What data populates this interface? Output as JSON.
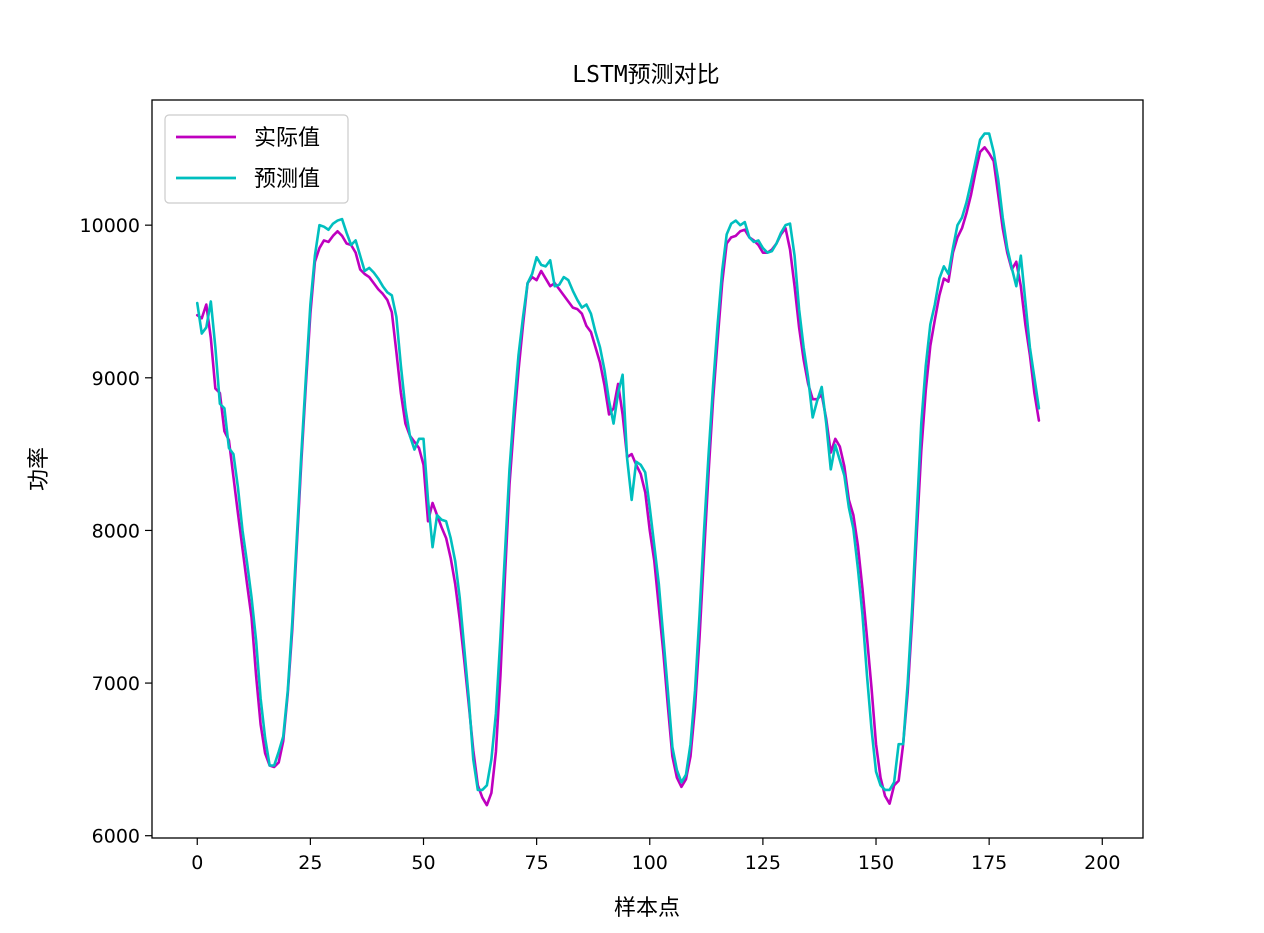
{
  "chart_data": {
    "type": "line",
    "title": "LSTM预测对比",
    "xlabel": "样本点",
    "ylabel": "功率",
    "xlim": [
      -10,
      209
    ],
    "ylim": [
      5985,
      10820
    ],
    "xticks": [
      0,
      25,
      50,
      75,
      100,
      125,
      150,
      175,
      200
    ],
    "yticks": [
      6000,
      7000,
      8000,
      9000,
      10000
    ],
    "grid": false,
    "legend_position": "upper left",
    "series": [
      {
        "name": "实际值",
        "color": "#bf00bf",
        "x_start": 0,
        "values": [
          9410,
          9390,
          9480,
          9260,
          8930,
          8900,
          8650,
          8590,
          8350,
          8110,
          7880,
          7650,
          7430,
          7050,
          6730,
          6540,
          6460,
          6450,
          6480,
          6620,
          6930,
          7350,
          7900,
          8450,
          8950,
          9420,
          9760,
          9850,
          9900,
          9890,
          9930,
          9960,
          9930,
          9880,
          9870,
          9820,
          9710,
          9680,
          9660,
          9620,
          9580,
          9550,
          9510,
          9430,
          9170,
          8900,
          8700,
          8620,
          8580,
          8540,
          8430,
          8060,
          8180,
          8100,
          8020,
          7950,
          7820,
          7650,
          7420,
          7150,
          6860,
          6560,
          6330,
          6250,
          6200,
          6280,
          6550,
          7050,
          7700,
          8300,
          8700,
          9050,
          9350,
          9620,
          9660,
          9640,
          9700,
          9650,
          9600,
          9620,
          9580,
          9540,
          9500,
          9460,
          9450,
          9420,
          9340,
          9300,
          9200,
          9100,
          8950,
          8760,
          8800,
          8960,
          8760,
          8480,
          8500,
          8430,
          8370,
          8250,
          8000,
          7800,
          7500,
          7200,
          6850,
          6520,
          6380,
          6320,
          6370,
          6520,
          6840,
          7300,
          7850,
          8380,
          8860,
          9250,
          9620,
          9880,
          9920,
          9930,
          9960,
          9970,
          9920,
          9900,
          9870,
          9820,
          9820,
          9840,
          9880,
          9940,
          9980,
          9840,
          9600,
          9330,
          9120,
          8960,
          8860,
          8860,
          8890,
          8730,
          8510,
          8600,
          8550,
          8420,
          8200,
          8100,
          7900,
          7620,
          7300,
          6970,
          6600,
          6380,
          6260,
          6210,
          6330,
          6360,
          6600,
          6940,
          7420,
          7980,
          8520,
          8920,
          9210,
          9380,
          9540,
          9650,
          9630,
          9820,
          9920,
          9980,
          10080,
          10200,
          10350,
          10480,
          10510,
          10470,
          10420,
          10200,
          9980,
          9820,
          9710,
          9760,
          9600,
          9350,
          9150,
          8900,
          8720
        ]
      },
      {
        "name": "预测值",
        "color": "#00bfbf",
        "x_start": 0,
        "values": [
          9490,
          9290,
          9330,
          9500,
          9200,
          8830,
          8800,
          8540,
          8500,
          8280,
          8000,
          7790,
          7560,
          7280,
          6900,
          6640,
          6460,
          6460,
          6550,
          6650,
          6950,
          7400,
          7950,
          8500,
          9000,
          9480,
          9800,
          10000,
          9990,
          9970,
          10010,
          10030,
          10040,
          9950,
          9870,
          9900,
          9800,
          9700,
          9720,
          9690,
          9650,
          9600,
          9560,
          9540,
          9400,
          9080,
          8800,
          8620,
          8530,
          8600,
          8600,
          8200,
          7890,
          8100,
          8070,
          8060,
          7950,
          7800,
          7560,
          7230,
          6900,
          6500,
          6300,
          6300,
          6330,
          6500,
          6800,
          7300,
          7850,
          8400,
          8800,
          9150,
          9400,
          9620,
          9680,
          9790,
          9740,
          9730,
          9770,
          9600,
          9610,
          9660,
          9640,
          9570,
          9510,
          9460,
          9480,
          9420,
          9300,
          9200,
          9050,
          8850,
          8700,
          8900,
          9020,
          8470,
          8200,
          8450,
          8430,
          8380,
          8150,
          7900,
          7650,
          7300,
          6950,
          6580,
          6430,
          6350,
          6400,
          6600,
          6950,
          7450,
          8000,
          8500,
          8950,
          9350,
          9700,
          9940,
          10010,
          10030,
          10000,
          10020,
          9920,
          9890,
          9900,
          9850,
          9820,
          9830,
          9880,
          9950,
          10000,
          10010,
          9800,
          9450,
          9200,
          9000,
          8740,
          8850,
          8940,
          8700,
          8400,
          8560,
          8460,
          8360,
          8150,
          8010,
          7750,
          7450,
          7050,
          6700,
          6420,
          6330,
          6300,
          6300,
          6350,
          6600,
          6600,
          7000,
          7500,
          8100,
          8700,
          9080,
          9350,
          9480,
          9650,
          9730,
          9680,
          9850,
          10000,
          10050,
          10150,
          10280,
          10420,
          10560,
          10600,
          10600,
          10480,
          10300,
          10050,
          9850,
          9720,
          9600,
          9800,
          9500,
          9200,
          9000,
          8800
        ]
      }
    ]
  }
}
